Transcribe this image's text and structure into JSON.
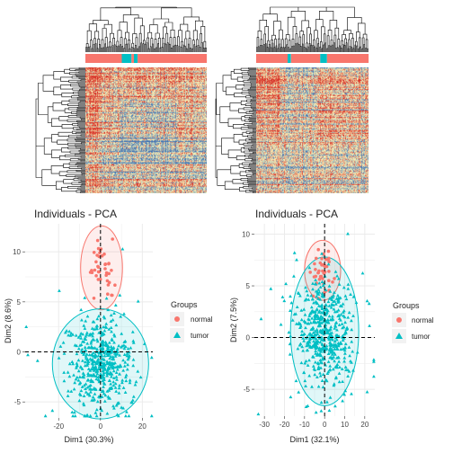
{
  "colors": {
    "normal": "#F8766D",
    "tumor": "#00BFC4",
    "panel_bg": "#FFFFFF",
    "grid": "#EBEBEB",
    "heat_low": "#4575B4",
    "heat_mid": "#FFFFBF",
    "heat_high": "#D73027"
  },
  "chart_data": [
    {
      "type": "heatmap",
      "name": "left-heatmap",
      "rows": 150,
      "cols": 190,
      "column_groups_visible": [
        "normal",
        "tumor",
        "normal",
        "tumor",
        "normal"
      ],
      "dendrograms": [
        "top",
        "left"
      ]
    },
    {
      "type": "heatmap",
      "name": "right-heatmap",
      "rows": 150,
      "cols": 190,
      "column_groups_visible": [
        "normal",
        "tumor",
        "normal",
        "tumor",
        "normal"
      ],
      "dendrograms": [
        "top",
        "left"
      ]
    },
    {
      "type": "scatter",
      "name": "left-pca",
      "title": "Individuals - PCA",
      "xlabel": "Dim1 (30.3%)",
      "ylabel": "Dim2 (8.6%)",
      "xlim": [
        -36,
        25
      ],
      "ylim": [
        -6.6,
        12.8
      ],
      "xticks": [
        -20,
        0,
        20
      ],
      "yticks": [
        -5,
        0,
        5,
        10
      ],
      "legend_title": "Groups",
      "legend_position": "right",
      "series": [
        {
          "name": "normal",
          "marker": "circle",
          "n": 40,
          "center": [
            0.5,
            8.4
          ],
          "spread": [
            3.2,
            1.4
          ]
        },
        {
          "name": "tumor",
          "marker": "triangle",
          "n": 520,
          "center": [
            0,
            -1.2
          ],
          "spread": [
            7,
            2.3
          ]
        }
      ],
      "ellipses": [
        {
          "group": "normal",
          "center": [
            0.5,
            8.4
          ],
          "radii": [
            10,
            4.2
          ]
        },
        {
          "group": "tumor",
          "center": [
            0,
            -1.2
          ],
          "radii": [
            23,
            5.5
          ]
        }
      ]
    },
    {
      "type": "scatter",
      "name": "right-pca",
      "title": "Individuals - PCA",
      "xlabel": "Dim1 (32.1%)",
      "ylabel": "Dim2 (7.5%)",
      "xlim": [
        -35,
        25
      ],
      "ylim": [
        -7.6,
        11
      ],
      "xticks": [
        -30,
        -20,
        -10,
        0,
        10,
        20
      ],
      "yticks": [
        -5,
        0,
        5,
        10
      ],
      "legend_title": "Groups",
      "legend_position": "right",
      "series": [
        {
          "name": "normal",
          "marker": "circle",
          "n": 45,
          "center": [
            -1,
            6.3
          ],
          "spread": [
            2.6,
            1.1
          ]
        },
        {
          "name": "tumor",
          "marker": "triangle",
          "n": 560,
          "center": [
            0,
            0.6
          ],
          "spread": [
            7,
            2.6
          ]
        }
      ],
      "ellipses": [
        {
          "group": "normal",
          "center": [
            -1,
            6.5
          ],
          "radii": [
            9,
            2.9
          ]
        },
        {
          "group": "tumor",
          "center": [
            0,
            0.6
          ],
          "radii": [
            17,
            7.2
          ]
        }
      ]
    }
  ]
}
